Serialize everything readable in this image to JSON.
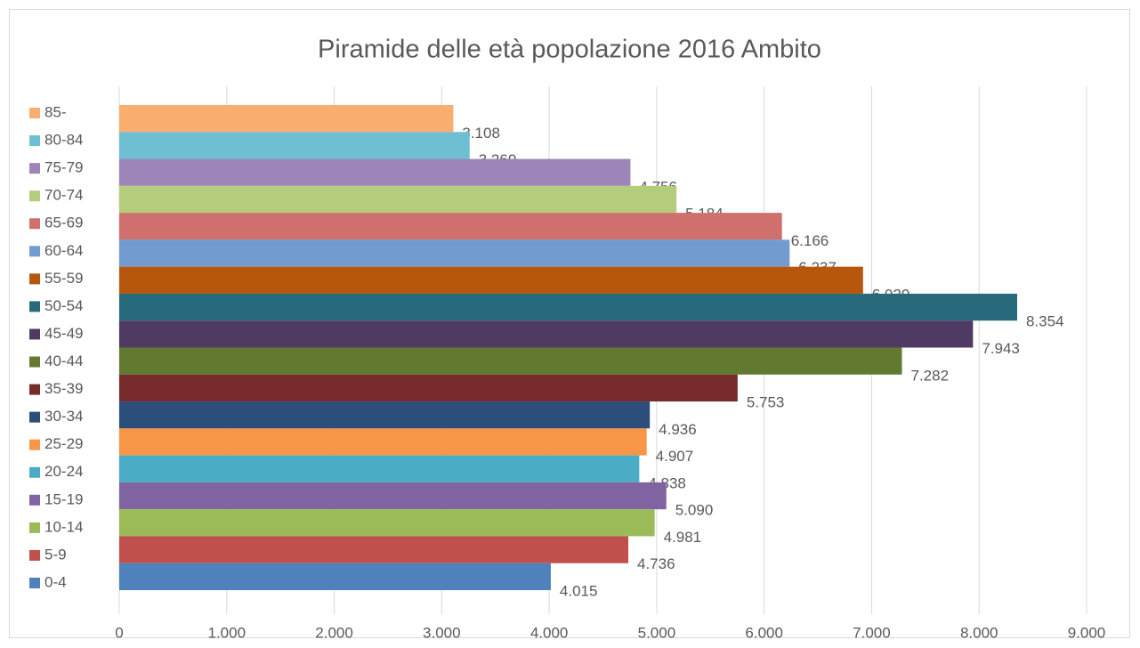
{
  "chart_data": {
    "type": "bar",
    "title": "Piramide delle età popolazione 2016 Ambito",
    "legend": "left",
    "grid": true,
    "xlim": [
      0,
      9000
    ],
    "xticks": [
      0,
      {
        "value": 1000,
        "label": "1.000"
      },
      {
        "value": 2000,
        "label": "2.000"
      },
      {
        "value": 3000,
        "label": "3.000"
      },
      {
        "value": 4000,
        "label": "4.000"
      },
      {
        "value": 5000,
        "label": "5.000"
      },
      {
        "value": 6000,
        "label": "6.000"
      },
      {
        "value": 7000,
        "label": "7.000"
      },
      {
        "value": 8000,
        "label": "8.000"
      },
      {
        "value": 9000,
        "label": "9.000"
      }
    ],
    "series": [
      {
        "name": "85-",
        "color": "#f9ad6f",
        "values": [
          3108
        ],
        "value_labels": [
          "3.108"
        ]
      },
      {
        "name": "80-84",
        "color": "#6fbfd2",
        "values": [
          3260
        ],
        "value_labels": [
          "3.260"
        ]
      },
      {
        "name": "75-79",
        "color": "#9d85b9",
        "values": [
          4756
        ],
        "value_labels": [
          "4.756"
        ]
      },
      {
        "name": "70-74",
        "color": "#b3cd7d",
        "values": [
          5184
        ],
        "value_labels": [
          "5.184"
        ]
      },
      {
        "name": "65-69",
        "color": "#d0706e",
        "values": [
          6166
        ],
        "value_labels": [
          "6.166"
        ]
      },
      {
        "name": "60-64",
        "color": "#729ccf",
        "values": [
          6237
        ],
        "value_labels": [
          "6.237"
        ]
      },
      {
        "name": "55-59",
        "color": "#b6570d",
        "values": [
          6920
        ],
        "value_labels": [
          "6.920"
        ]
      },
      {
        "name": "50-54",
        "color": "#276a7c",
        "values": [
          8354
        ],
        "value_labels": [
          "8.354"
        ]
      },
      {
        "name": "45-49",
        "color": "#4f3a63",
        "values": [
          7943
        ],
        "value_labels": [
          "7.943"
        ]
      },
      {
        "name": "40-44",
        "color": "#617a2f",
        "values": [
          7282
        ],
        "value_labels": [
          "7.282"
        ]
      },
      {
        "name": "35-39",
        "color": "#772b2b",
        "values": [
          5753
        ],
        "value_labels": [
          "5.753"
        ]
      },
      {
        "name": "30-34",
        "color": "#2b4e7b",
        "values": [
          4936
        ],
        "value_labels": [
          "4.936"
        ]
      },
      {
        "name": "25-29",
        "color": "#f79646",
        "values": [
          4907
        ],
        "value_labels": [
          "4.907"
        ]
      },
      {
        "name": "20-24",
        "color": "#4bacc6",
        "values": [
          4838
        ],
        "value_labels": [
          "4.838"
        ]
      },
      {
        "name": "15-19",
        "color": "#8064a2",
        "values": [
          5090
        ],
        "value_labels": [
          "5.090"
        ]
      },
      {
        "name": "10-14",
        "color": "#9bbb59",
        "values": [
          4981
        ],
        "value_labels": [
          "4.981"
        ]
      },
      {
        "name": "5-9",
        "color": "#c0504d",
        "values": [
          4736
        ],
        "value_labels": [
          "4.736"
        ]
      },
      {
        "name": "0-4",
        "color": "#4f81bd",
        "values": [
          4015
        ],
        "value_labels": [
          "4.015"
        ]
      }
    ]
  }
}
